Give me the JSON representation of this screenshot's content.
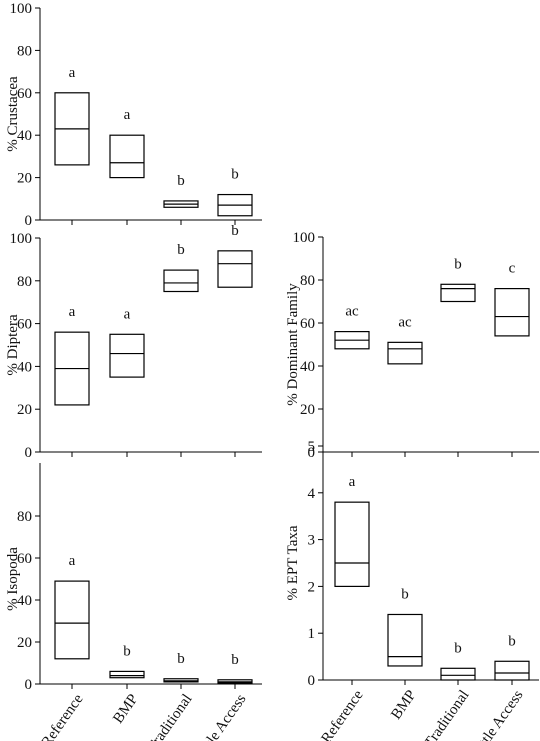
{
  "chart_data": [
    {
      "type": "box",
      "y_label": "% Crustacea",
      "ylim": [
        0,
        100
      ],
      "yticks": [
        0,
        20,
        40,
        60,
        80,
        100
      ],
      "q1": [
        26,
        20,
        6,
        2
      ],
      "median": [
        43,
        27,
        7.5,
        7
      ],
      "q3": [
        60,
        40,
        9,
        12
      ],
      "letters": [
        "a",
        "a",
        "b",
        "b"
      ]
    },
    {
      "type": "box",
      "y_label": "% Diptera",
      "ylim": [
        0,
        100
      ],
      "yticks": [
        0,
        20,
        40,
        60,
        80,
        100
      ],
      "q1": [
        22,
        35,
        75,
        77
      ],
      "median": [
        39,
        46,
        79,
        88
      ],
      "q3": [
        56,
        55,
        85,
        94
      ],
      "letters": [
        "a",
        "a",
        "b",
        "b"
      ]
    },
    {
      "type": "box",
      "y_label": "% Dominant Family",
      "ylim": [
        0,
        100
      ],
      "yticks": [
        0,
        20,
        40,
        60,
        80,
        100
      ],
      "q1": [
        48,
        41,
        70,
        54
      ],
      "median": [
        52,
        48,
        76,
        63
      ],
      "q3": [
        56,
        51,
        78,
        76
      ],
      "letters": [
        "ac",
        "ac",
        "b",
        "c"
      ]
    },
    {
      "type": "box",
      "y_label": "% Isopoda",
      "ylim": [
        0,
        100
      ],
      "yticks": [
        0,
        20,
        40,
        60,
        80
      ],
      "categories": [
        "Reference",
        "BMP",
        "Traditional",
        "Cattle Access"
      ],
      "q1": [
        12,
        3,
        1,
        0.5
      ],
      "median": [
        29,
        4,
        1.5,
        1
      ],
      "q3": [
        49,
        6,
        2.5,
        2
      ],
      "letters": [
        "a",
        "b",
        "b",
        "b"
      ]
    },
    {
      "type": "box",
      "y_label": "% EPT Taxa",
      "ylim": [
        0,
        5
      ],
      "yticks": [
        0,
        1,
        2,
        3,
        4,
        5
      ],
      "categories": [
        "Reference",
        "BMP",
        "Traditional",
        "Cattle Access"
      ],
      "q1": [
        2,
        0.3,
        0,
        0
      ],
      "median": [
        2.5,
        0.5,
        0.1,
        0.15
      ],
      "q3": [
        3.8,
        1.4,
        0.25,
        0.4
      ],
      "letters": [
        "a",
        "b",
        "b",
        "b"
      ]
    }
  ]
}
